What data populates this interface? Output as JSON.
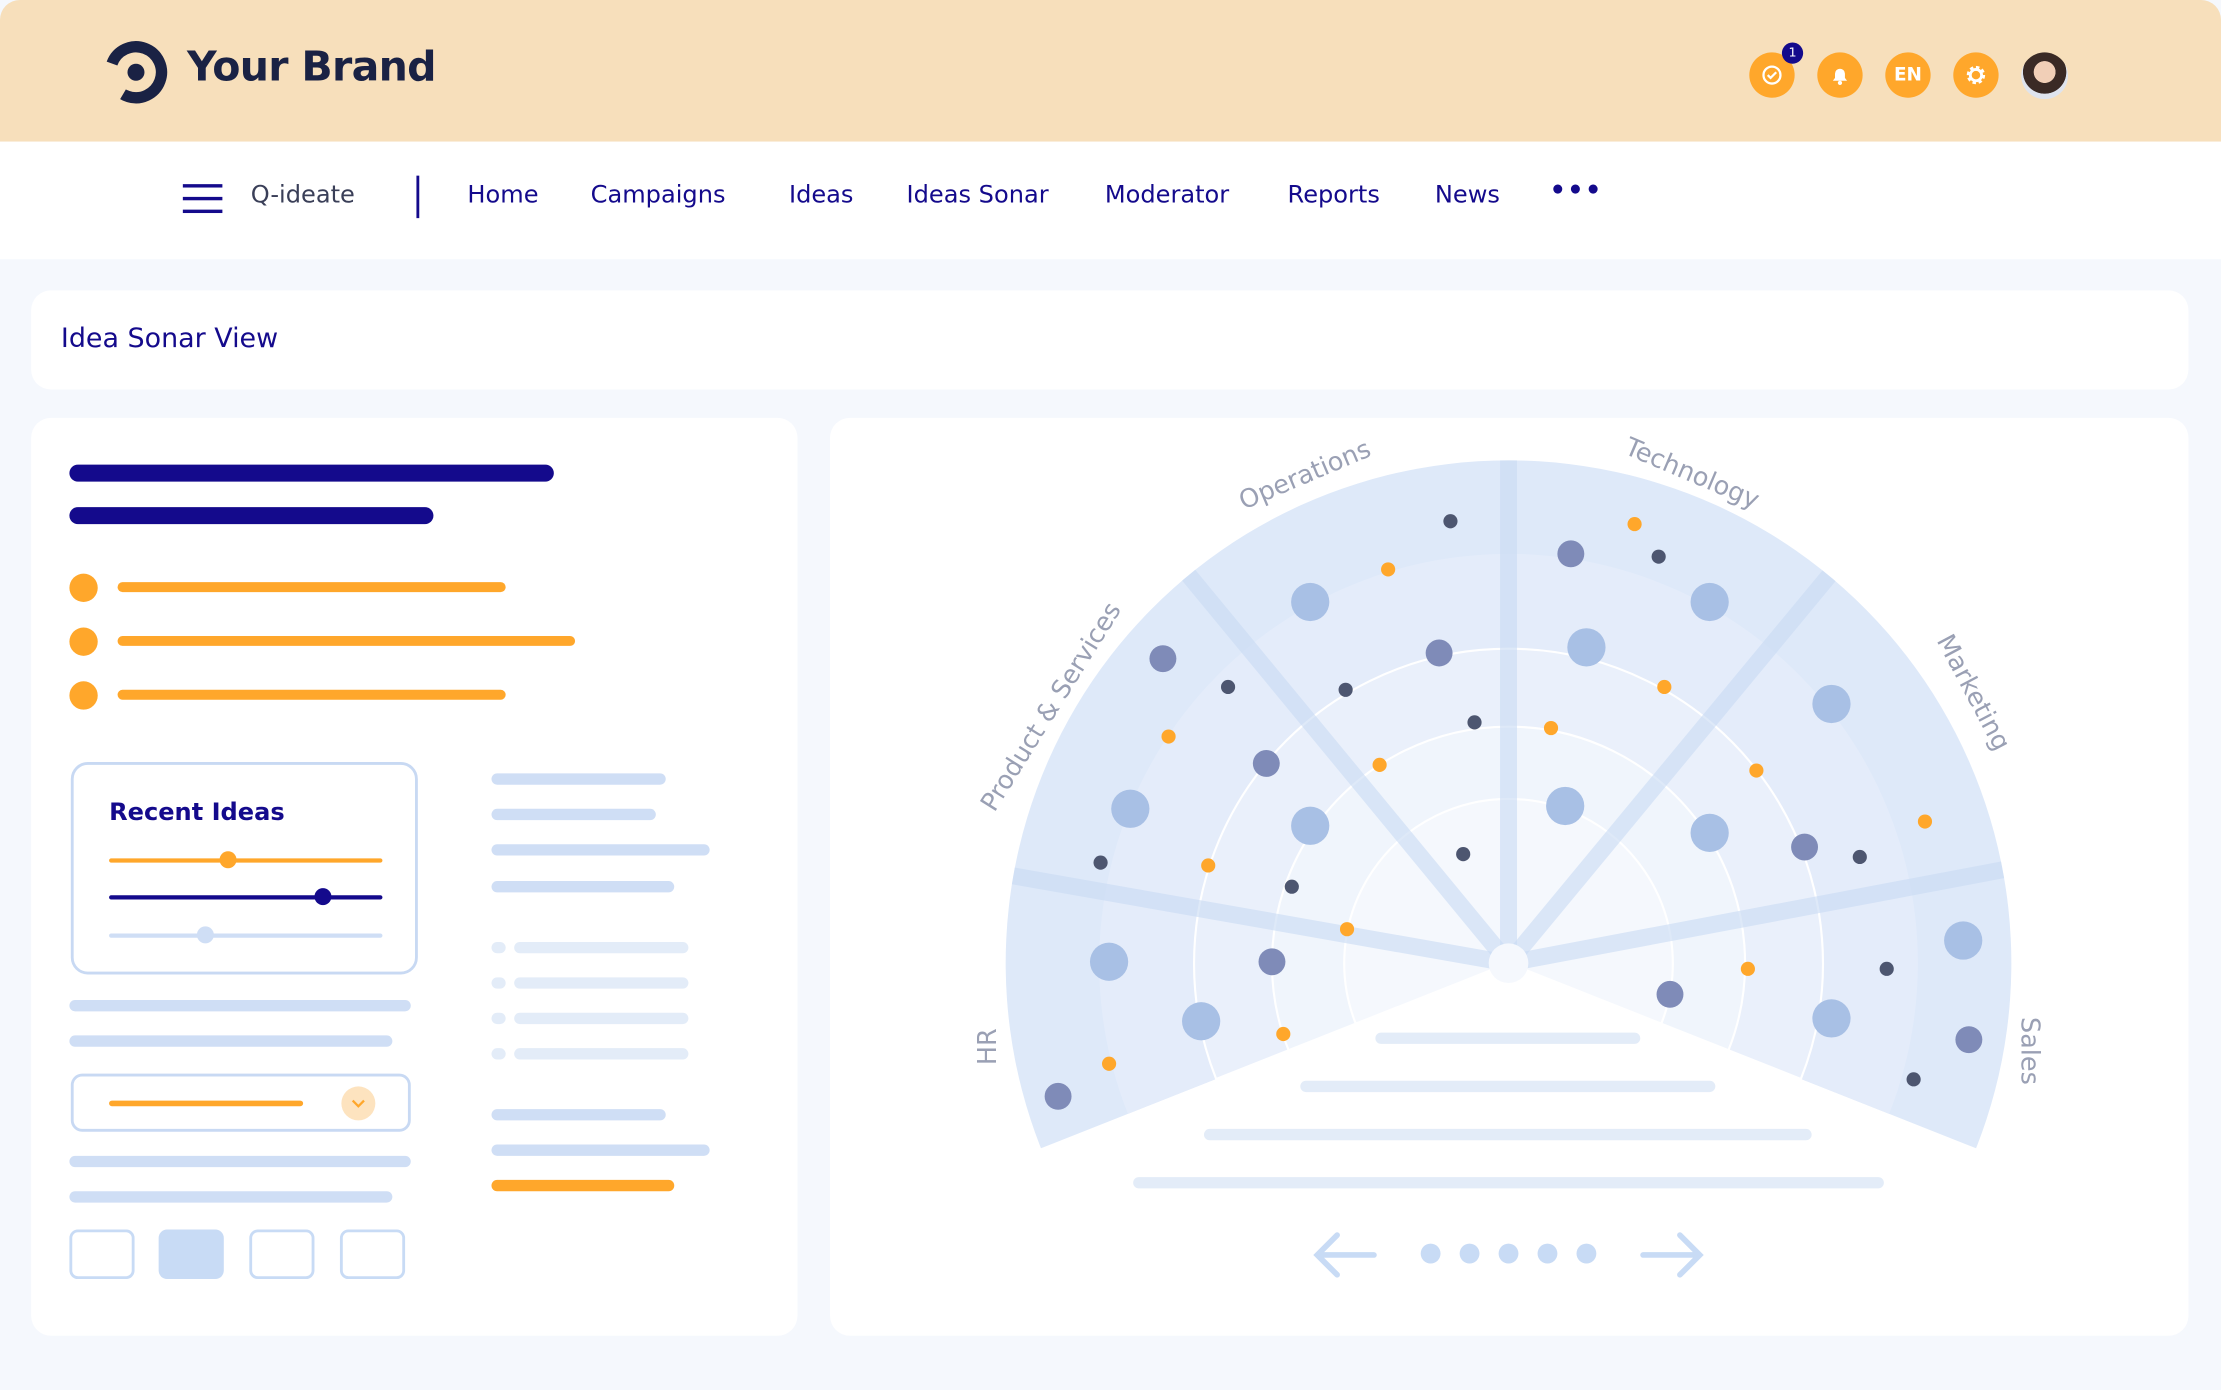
{
  "header": {
    "brand": "Your Brand",
    "notification_badge": "1",
    "language": "EN",
    "icons": [
      "check-circle-icon",
      "bell-icon",
      "language-icon",
      "gear-icon",
      "avatar"
    ]
  },
  "nav": {
    "app_name": "Q-ideate",
    "items": [
      "Home",
      "Campaigns",
      "Ideas",
      "Ideas Sonar",
      "Moderator",
      "Reports",
      "News"
    ],
    "more": "•••"
  },
  "page": {
    "title": "Idea Sonar View"
  },
  "left_panel": {
    "recent_ideas_title": "Recent Ideas",
    "slider_levels": [
      0.44,
      0.78,
      0.36
    ]
  },
  "sonar": {
    "sectors": [
      "HR",
      "Product & Services",
      "Operations",
      "Technology",
      "Marketing",
      "Sales"
    ],
    "pagination": {
      "pages": 5
    },
    "colors": {
      "orange": "#ffa72b",
      "navy": "#140a8c",
      "dark_dot": "#4d5670",
      "purple_dot": "#7f8bb8",
      "blue_dot": "#a8c0e5"
    }
  }
}
